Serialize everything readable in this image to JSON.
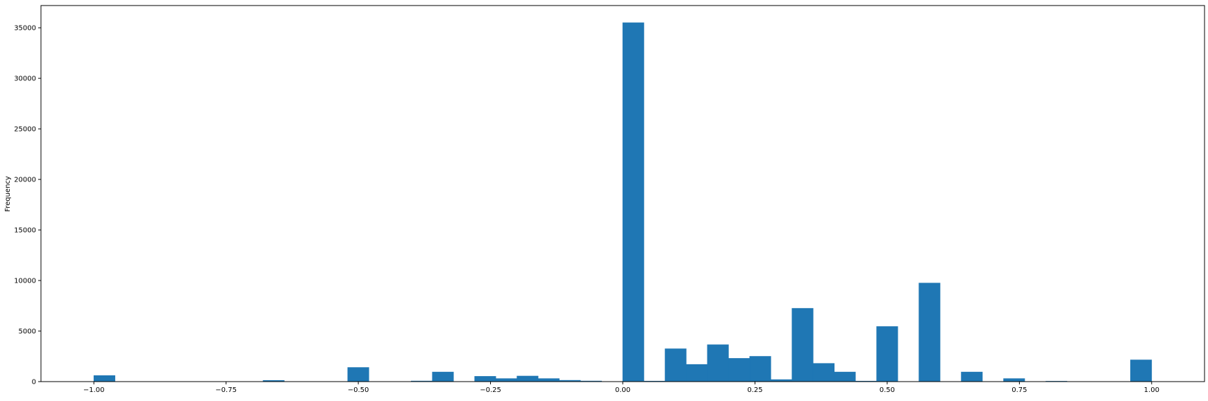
{
  "chart_data": {
    "type": "bar",
    "title": "",
    "xlabel": "",
    "ylabel": "Frequency",
    "xlim": [
      -1.1,
      1.1
    ],
    "ylim": [
      0,
      37200
    ],
    "grid": false,
    "legend": "none",
    "bin_width": 0.04,
    "color": "#1f77b4",
    "x_ticks": [
      {
        "value": -1.0,
        "label": "−1.00"
      },
      {
        "value": -0.75,
        "label": "−0.75"
      },
      {
        "value": -0.5,
        "label": "−0.50"
      },
      {
        "value": -0.25,
        "label": "−0.25"
      },
      {
        "value": 0.0,
        "label": "0.00"
      },
      {
        "value": 0.25,
        "label": "0.25"
      },
      {
        "value": 0.5,
        "label": "0.50"
      },
      {
        "value": 0.75,
        "label": "0.75"
      },
      {
        "value": 1.0,
        "label": "1.00"
      }
    ],
    "y_ticks": [
      {
        "value": 0,
        "label": "0"
      },
      {
        "value": 5000,
        "label": "5000"
      },
      {
        "value": 10000,
        "label": "10000"
      },
      {
        "value": 15000,
        "label": "15000"
      },
      {
        "value": 20000,
        "label": "20000"
      },
      {
        "value": 25000,
        "label": "25000"
      },
      {
        "value": 30000,
        "label": "30000"
      },
      {
        "value": 35000,
        "label": "35000"
      }
    ],
    "bins": [
      {
        "x0": -1.0,
        "x1": -0.96,
        "count": 600
      },
      {
        "x0": -0.68,
        "x1": -0.64,
        "count": 120
      },
      {
        "x0": -0.52,
        "x1": -0.48,
        "count": 1400
      },
      {
        "x0": -0.4,
        "x1": -0.36,
        "count": 60
      },
      {
        "x0": -0.36,
        "x1": -0.32,
        "count": 950
      },
      {
        "x0": -0.28,
        "x1": -0.24,
        "count": 520
      },
      {
        "x0": -0.24,
        "x1": -0.2,
        "count": 300
      },
      {
        "x0": -0.2,
        "x1": -0.16,
        "count": 550
      },
      {
        "x0": -0.16,
        "x1": -0.12,
        "count": 300
      },
      {
        "x0": -0.12,
        "x1": -0.08,
        "count": 130
      },
      {
        "x0": -0.08,
        "x1": -0.04,
        "count": 60
      },
      {
        "x0": 0.0,
        "x1": 0.04,
        "count": 35500
      },
      {
        "x0": 0.04,
        "x1": 0.08,
        "count": 50
      },
      {
        "x0": 0.08,
        "x1": 0.12,
        "count": 3250
      },
      {
        "x0": 0.12,
        "x1": 0.16,
        "count": 1700
      },
      {
        "x0": 0.16,
        "x1": 0.2,
        "count": 3650
      },
      {
        "x0": 0.2,
        "x1": 0.24,
        "count": 2300
      },
      {
        "x0": 0.24,
        "x1": 0.28,
        "count": 2500
      },
      {
        "x0": 0.28,
        "x1": 0.32,
        "count": 200
      },
      {
        "x0": 0.32,
        "x1": 0.36,
        "count": 7250
      },
      {
        "x0": 0.36,
        "x1": 0.4,
        "count": 1800
      },
      {
        "x0": 0.4,
        "x1": 0.44,
        "count": 950
      },
      {
        "x0": 0.44,
        "x1": 0.48,
        "count": 50
      },
      {
        "x0": 0.48,
        "x1": 0.52,
        "count": 5450
      },
      {
        "x0": 0.56,
        "x1": 0.6,
        "count": 9750
      },
      {
        "x0": 0.64,
        "x1": 0.68,
        "count": 950
      },
      {
        "x0": 0.72,
        "x1": 0.76,
        "count": 300
      },
      {
        "x0": 0.8,
        "x1": 0.84,
        "count": 40
      },
      {
        "x0": 0.96,
        "x1": 1.0,
        "count": 2150
      }
    ]
  }
}
